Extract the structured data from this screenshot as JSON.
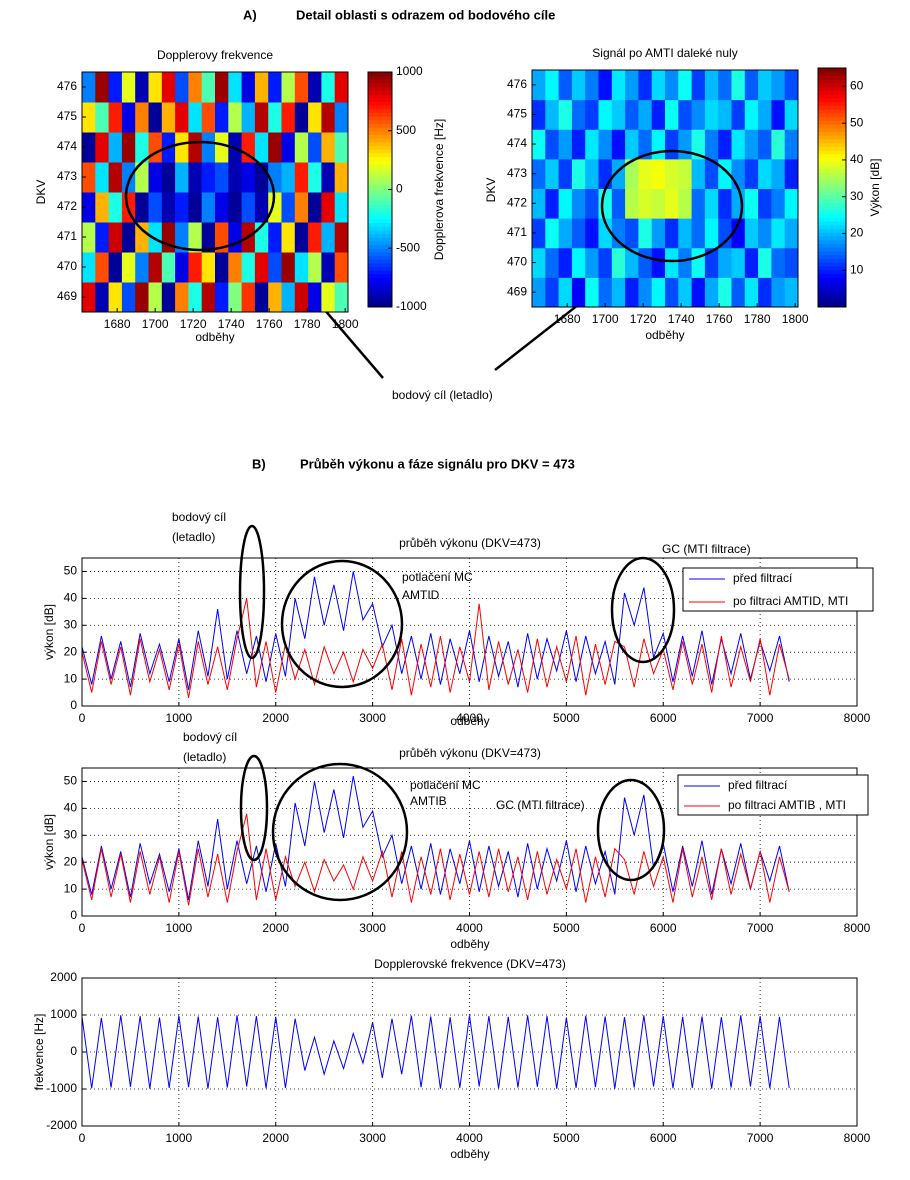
{
  "headings": [
    {
      "label": "A)",
      "text": "Detail oblasti s odrazem od bodového cíle"
    },
    {
      "label": "B)",
      "text": "Průběh výkonu a fáze signálu pro DKV = 473"
    }
  ],
  "callout": "bodový cíl (letadlo)",
  "chart_data": [
    {
      "type": "heatmap",
      "title": "Dopplerovy frekvence",
      "xlabel": "odběhy",
      "ylabel": "DKV",
      "colorbar_label": "Dopplerova frekvence [Hz]",
      "colormap": "jet",
      "x": [
        1665,
        1672,
        1679,
        1686,
        1693,
        1700,
        1707,
        1714,
        1721,
        1728,
        1735,
        1742,
        1749,
        1756,
        1763,
        1770,
        1777,
        1784,
        1791,
        1798
      ],
      "y": [
        469,
        470,
        471,
        472,
        473,
        474,
        475,
        476
      ],
      "values": [
        [
          800,
          -900,
          300,
          -600,
          950,
          100,
          -950,
          500,
          -200,
          900,
          -700,
          0,
          650,
          -950,
          400,
          -400,
          850,
          -800,
          200,
          -100
        ],
        [
          -300,
          600,
          -950,
          200,
          -500,
          900,
          -100,
          -800,
          700,
          300,
          -950,
          500,
          -200,
          800,
          -600,
          950,
          -300,
          100,
          -900,
          600
        ],
        [
          100,
          -700,
          850,
          -950,
          400,
          -300,
          950,
          -500,
          100,
          -950,
          600,
          -800,
          900,
          -200,
          -700,
          300,
          -950,
          700,
          -400,
          900
        ],
        [
          -800,
          400,
          -200,
          700,
          -950,
          -600,
          -900,
          -700,
          -950,
          -500,
          -800,
          -950,
          -600,
          -900,
          200,
          -600,
          500,
          -950,
          800,
          -300
        ],
        [
          600,
          -300,
          900,
          -500,
          100,
          -800,
          -950,
          -400,
          -900,
          -700,
          -600,
          -900,
          -800,
          -950,
          -500,
          -400,
          700,
          -200,
          -900,
          400
        ],
        [
          -950,
          800,
          -400,
          950,
          -200,
          600,
          -700,
          300,
          900,
          -500,
          200,
          -900,
          700,
          -300,
          950,
          -800,
          100,
          -600,
          400,
          -100
        ],
        [
          300,
          -100,
          700,
          -800,
          500,
          -950,
          400,
          800,
          -300,
          600,
          -700,
          100,
          -400,
          900,
          -200,
          700,
          -950,
          300,
          900,
          -500
        ],
        [
          -500,
          950,
          -700,
          200,
          -900,
          300,
          800,
          -600,
          500,
          -100,
          950,
          -300,
          -800,
          400,
          -700,
          100,
          600,
          -900,
          -200,
          800
        ]
      ],
      "xlim": [
        1661.5,
        1801.5
      ],
      "ylim": [
        468.5,
        476.5
      ],
      "xticks": [
        1680,
        1700,
        1720,
        1740,
        1760,
        1780,
        1800
      ],
      "yticks": [
        469,
        470,
        471,
        472,
        473,
        474,
        475,
        476
      ],
      "clim": [
        -1000,
        1000
      ],
      "cticks": [
        -1000,
        -500,
        0,
        500,
        1000
      ]
    },
    {
      "type": "heatmap",
      "title": "Signál po AMTI daleké nuly",
      "xlabel": "odběhy",
      "ylabel": "DKV",
      "colorbar_label": "Výkon [dB]",
      "colormap": "jet",
      "x": [
        1665,
        1672,
        1679,
        1686,
        1693,
        1700,
        1707,
        1714,
        1721,
        1728,
        1735,
        1742,
        1749,
        1756,
        1763,
        1770,
        1777,
        1784,
        1791,
        1798
      ],
      "y": [
        469,
        470,
        471,
        472,
        473,
        474,
        475,
        476
      ],
      "values": [
        [
          18,
          12,
          22,
          8,
          25,
          15,
          20,
          10,
          17,
          24,
          13,
          21,
          9,
          19,
          26,
          14,
          23,
          11,
          18,
          20
        ],
        [
          22,
          15,
          10,
          24,
          18,
          12,
          27,
          20,
          14,
          9,
          23,
          16,
          25,
          12,
          19,
          21,
          10,
          26,
          15,
          13
        ],
        [
          12,
          25,
          19,
          14,
          9,
          22,
          16,
          13,
          26,
          18,
          11,
          20,
          15,
          24,
          13,
          8,
          21,
          17,
          23,
          19
        ],
        [
          20,
          10,
          24,
          17,
          13,
          26,
          14,
          36,
          38,
          37,
          39,
          36,
          15,
          22,
          11,
          19,
          25,
          12,
          16,
          24
        ],
        [
          15,
          21,
          12,
          26,
          20,
          11,
          19,
          35,
          39,
          40,
          38,
          37,
          20,
          13,
          24,
          17,
          12,
          22,
          19,
          10
        ],
        [
          25,
          13,
          18,
          10,
          23,
          17,
          9,
          21,
          15,
          24,
          12,
          18,
          26,
          16,
          10,
          23,
          18,
          14,
          27,
          16
        ],
        [
          11,
          20,
          26,
          15,
          12,
          24,
          21,
          14,
          19,
          10,
          25,
          13,
          17,
          22,
          20,
          12,
          24,
          19,
          9,
          22
        ],
        [
          19,
          24,
          14,
          21,
          16,
          9,
          23,
          18,
          11,
          22,
          17,
          25,
          12,
          20,
          15,
          26,
          14,
          21,
          18,
          13
        ]
      ],
      "xlim": [
        1661.5,
        1801.5
      ],
      "ylim": [
        468.5,
        476.5
      ],
      "xticks": [
        1680,
        1700,
        1720,
        1740,
        1760,
        1780,
        1800
      ],
      "yticks": [
        469,
        470,
        471,
        472,
        473,
        474,
        475,
        476
      ],
      "clim": [
        0,
        65
      ],
      "cticks": [
        10,
        20,
        30,
        40,
        50,
        60
      ]
    },
    {
      "type": "line",
      "title": "průběh výkonu (DKV=473)",
      "xlabel": "odběhy",
      "ylabel": "výkon [dB]",
      "grid": true,
      "annotations": [
        "bodový cíl",
        "(letadlo)",
        "potlačení MC",
        "AMTID",
        "GC (MTI filtrace)"
      ],
      "x": [
        0,
        100,
        200,
        300,
        400,
        500,
        600,
        700,
        800,
        900,
        1000,
        1100,
        1200,
        1300,
        1400,
        1500,
        1600,
        1700,
        1800,
        1900,
        2000,
        2100,
        2200,
        2300,
        2400,
        2500,
        2600,
        2700,
        2800,
        2900,
        3000,
        3100,
        3200,
        3300,
        3400,
        3500,
        3600,
        3700,
        3800,
        3900,
        4000,
        4100,
        4200,
        4300,
        4400,
        4500,
        4600,
        4700,
        4800,
        4900,
        5000,
        5100,
        5200,
        5300,
        5400,
        5500,
        5600,
        5700,
        5800,
        5900,
        6000,
        6100,
        6200,
        6300,
        6400,
        6500,
        6600,
        6700,
        6800,
        6900,
        7000,
        7100,
        7200,
        7300
      ],
      "series": [
        {
          "name": "před filtrací",
          "color": "#0000ff",
          "values": [
            22,
            8,
            26,
            10,
            24,
            7,
            27,
            12,
            23,
            9,
            25,
            6,
            28,
            11,
            36,
            10,
            28,
            12,
            26,
            9,
            27,
            11,
            40,
            25,
            48,
            30,
            45,
            28,
            50,
            32,
            38,
            22,
            30,
            12,
            26,
            10,
            27,
            8,
            25,
            12,
            28,
            9,
            26,
            11,
            24,
            7,
            27,
            10,
            25,
            13,
            28,
            9,
            26,
            12,
            24,
            8,
            42,
            30,
            44,
            18,
            27,
            9,
            26,
            11,
            28,
            8,
            25,
            12,
            27,
            10,
            24,
            13,
            26,
            9
          ]
        },
        {
          "name": "po filtraci AMTID, MTI",
          "color": "#ff0000",
          "values": [
            20,
            5,
            24,
            8,
            22,
            4,
            25,
            9,
            21,
            6,
            23,
            3,
            24,
            8,
            22,
            6,
            25,
            40,
            7,
            24,
            5,
            23,
            10,
            21,
            8,
            22,
            12,
            20,
            9,
            21,
            14,
            23,
            6,
            25,
            4,
            23,
            7,
            26,
            5,
            22,
            9,
            38,
            6,
            24,
            8,
            21,
            5,
            25,
            7,
            22,
            9,
            26,
            4,
            23,
            8,
            24,
            22,
            7,
            25,
            12,
            21,
            6,
            24,
            8,
            23,
            5,
            26,
            7,
            22,
            9,
            25,
            4,
            23,
            10
          ]
        }
      ],
      "xlim": [
        0,
        8000
      ],
      "ylim": [
        0,
        55
      ],
      "xticks": [
        0,
        1000,
        2000,
        3000,
        4000,
        5000,
        6000,
        7000,
        8000
      ],
      "yticks": [
        0,
        10,
        20,
        30,
        40,
        50
      ]
    },
    {
      "type": "line",
      "title": "průběh výkonu (DKV=473)",
      "xlabel": "odběhy",
      "ylabel": "výkon [dB]",
      "grid": true,
      "annotations": [
        "bodový cíl",
        "(letadlo)",
        "potlačení MC",
        "AMTIB",
        "GC (MTI filtrace)"
      ],
      "x": [
        0,
        100,
        200,
        300,
        400,
        500,
        600,
        700,
        800,
        900,
        1000,
        1100,
        1200,
        1300,
        1400,
        1500,
        1600,
        1700,
        1800,
        1900,
        2000,
        2100,
        2200,
        2300,
        2400,
        2500,
        2600,
        2700,
        2800,
        2900,
        3000,
        3100,
        3200,
        3300,
        3400,
        3500,
        3600,
        3700,
        3800,
        3900,
        4000,
        4100,
        4200,
        4300,
        4400,
        4500,
        4600,
        4700,
        4800,
        4900,
        5000,
        5100,
        5200,
        5300,
        5400,
        5500,
        5600,
        5700,
        5800,
        5900,
        6000,
        6100,
        6200,
        6300,
        6400,
        6500,
        6600,
        6700,
        6800,
        6900,
        7000,
        7100,
        7200,
        7300
      ],
      "series": [
        {
          "name": "před filtrací",
          "color": "#0000ff",
          "values": [
            22,
            8,
            26,
            10,
            24,
            7,
            27,
            12,
            23,
            9,
            25,
            6,
            28,
            11,
            36,
            10,
            28,
            12,
            26,
            9,
            27,
            11,
            42,
            26,
            50,
            31,
            47,
            29,
            52,
            33,
            39,
            22,
            30,
            12,
            26,
            10,
            27,
            8,
            25,
            12,
            28,
            9,
            26,
            11,
            24,
            7,
            27,
            10,
            25,
            13,
            28,
            9,
            26,
            12,
            24,
            8,
            44,
            30,
            45,
            18,
            27,
            9,
            26,
            11,
            28,
            8,
            25,
            12,
            27,
            10,
            24,
            13,
            26,
            9
          ]
        },
        {
          "name": "po filtraci AMTIB , MTI",
          "color": "#ff0000",
          "values": [
            21,
            6,
            25,
            7,
            23,
            5,
            24,
            8,
            22,
            5,
            24,
            4,
            25,
            7,
            23,
            5,
            24,
            38,
            6,
            25,
            6,
            22,
            11,
            20,
            9,
            21,
            13,
            19,
            10,
            22,
            13,
            24,
            7,
            24,
            5,
            22,
            8,
            25,
            6,
            23,
            8,
            24,
            7,
            25,
            9,
            22,
            6,
            24,
            8,
            21,
            10,
            25,
            5,
            22,
            7,
            25,
            21,
            8,
            24,
            11,
            22,
            5,
            25,
            7,
            22,
            6,
            25,
            8,
            23,
            10,
            24,
            5,
            22,
            9
          ]
        }
      ],
      "xlim": [
        0,
        8000
      ],
      "ylim": [
        0,
        55
      ],
      "xticks": [
        0,
        1000,
        2000,
        3000,
        4000,
        5000,
        6000,
        7000,
        8000
      ],
      "yticks": [
        0,
        10,
        20,
        30,
        40,
        50
      ]
    },
    {
      "type": "line",
      "title": "Dopplerovské frekvence (DKV=473)",
      "xlabel": "odběhy",
      "ylabel": "frekvence [Hz]",
      "grid": true,
      "x": [
        0,
        100,
        200,
        300,
        400,
        500,
        600,
        700,
        800,
        900,
        1000,
        1100,
        1200,
        1300,
        1400,
        1500,
        1600,
        1700,
        1800,
        1900,
        2000,
        2100,
        2200,
        2300,
        2400,
        2500,
        2600,
        2700,
        2800,
        2900,
        3000,
        3100,
        3200,
        3300,
        3400,
        3500,
        3600,
        3700,
        3800,
        3900,
        4000,
        4100,
        4200,
        4300,
        4400,
        4500,
        4600,
        4700,
        4800,
        4900,
        5000,
        5100,
        5200,
        5300,
        5400,
        5500,
        5600,
        5700,
        5800,
        5900,
        6000,
        6100,
        6200,
        6300,
        6400,
        6500,
        6600,
        6700,
        6800,
        6900,
        7000,
        7100,
        7200,
        7300
      ],
      "series": [
        {
          "color": "#0000ff",
          "values": [
            950,
            -980,
            920,
            -960,
            990,
            -940,
            970,
            -990,
            930,
            -970,
            980,
            -950,
            960,
            -990,
            940,
            -960,
            990,
            -930,
            970,
            -980,
            950,
            -970,
            900,
            -500,
            400,
            -600,
            300,
            -450,
            500,
            -300,
            800,
            -700,
            900,
            -600,
            980,
            -950,
            960,
            -990,
            940,
            -970,
            990,
            -930,
            970,
            -980,
            950,
            -960,
            990,
            -940,
            970,
            -990,
            930,
            -970,
            980,
            -950,
            960,
            -990,
            940,
            -960,
            990,
            -930,
            970,
            -980,
            950,
            -970,
            960,
            -990,
            940,
            -960,
            990,
            -930,
            970,
            -980,
            950,
            -970
          ]
        }
      ],
      "xlim": [
        0,
        8000
      ],
      "ylim": [
        -2000,
        2000
      ],
      "xticks": [
        0,
        1000,
        2000,
        3000,
        4000,
        5000,
        6000,
        7000,
        8000
      ],
      "yticks": [
        -2000,
        -1000,
        0,
        1000,
        2000
      ]
    }
  ]
}
